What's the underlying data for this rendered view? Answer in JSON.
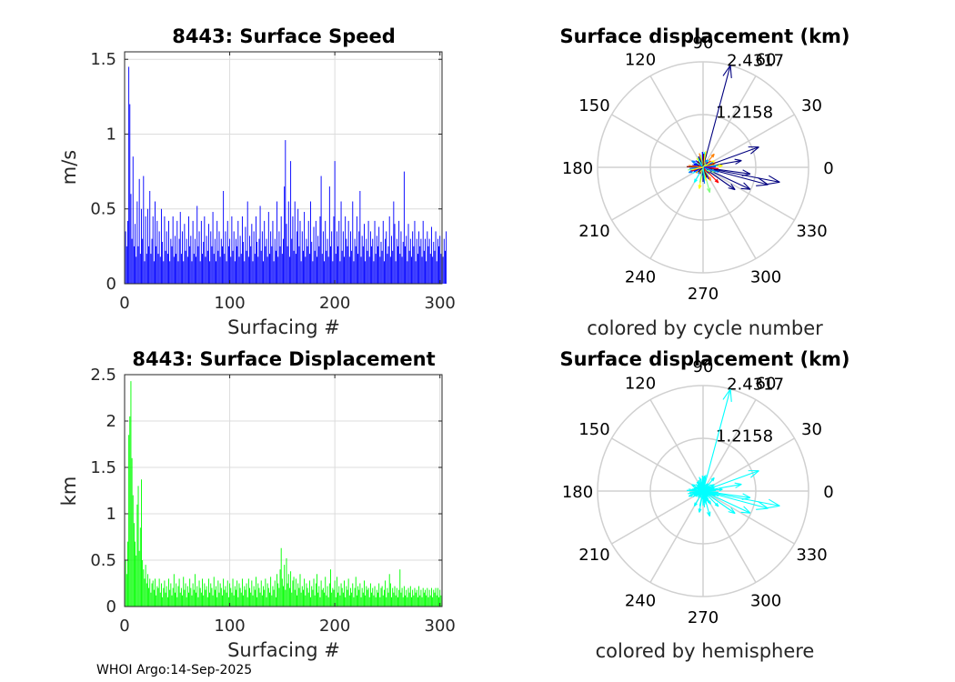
{
  "footer": {
    "credit": "WHOI Argo:14-Sep-2025"
  },
  "chart_data": [
    {
      "id": "speed",
      "type": "bar",
      "title": "8443: Surface Speed",
      "xlabel": "Surfacing #",
      "ylabel": "m/s",
      "xlim": [
        0,
        302
      ],
      "ylim": [
        0,
        1.55
      ],
      "xticks": [
        0,
        100,
        200,
        300
      ],
      "yticks": [
        0,
        0.5,
        1,
        1.5
      ],
      "yticklabels": [
        "0",
        "0.5",
        "1",
        "1.5"
      ],
      "grid": true,
      "color": "#0000ff",
      "x_start": 1,
      "values": [
        0.35,
        0.25,
        0.42,
        1.45,
        1.2,
        0.6,
        0.3,
        0.85,
        0.25,
        0.4,
        0.18,
        0.55,
        0.25,
        0.7,
        0.2,
        0.5,
        0.3,
        0.72,
        0.15,
        0.45,
        0.2,
        0.5,
        0.25,
        0.62,
        0.2,
        0.3,
        0.45,
        0.15,
        0.55,
        0.25,
        0.42,
        0.2,
        0.35,
        0.18,
        0.5,
        0.28,
        0.15,
        0.45,
        0.22,
        0.35,
        0.2,
        0.42,
        0.15,
        0.3,
        0.25,
        0.45,
        0.18,
        0.32,
        0.2,
        0.42,
        0.15,
        0.3,
        0.48,
        0.2,
        0.35,
        0.15,
        0.4,
        0.22,
        0.3,
        0.18,
        0.45,
        0.25,
        0.32,
        0.15,
        0.42,
        0.2,
        0.3,
        0.18,
        0.52,
        0.25,
        0.35,
        0.15,
        0.42,
        0.2,
        0.28,
        0.45,
        0.18,
        0.32,
        0.22,
        0.4,
        0.15,
        0.35,
        0.25,
        0.48,
        0.2,
        0.3,
        0.15,
        0.42,
        0.22,
        0.35,
        0.18,
        0.3,
        0.25,
        0.62,
        0.2,
        0.35,
        0.15,
        0.42,
        0.25,
        0.3,
        0.18,
        0.45,
        0.22,
        0.35,
        0.15,
        0.3,
        0.25,
        0.42,
        0.18,
        0.32,
        0.2,
        0.45,
        0.28,
        0.15,
        0.38,
        0.22,
        0.55,
        0.18,
        0.32,
        0.25,
        0.4,
        0.15,
        0.35,
        0.2,
        0.45,
        0.28,
        0.18,
        0.3,
        0.52,
        0.22,
        0.35,
        0.15,
        0.42,
        0.25,
        0.3,
        0.18,
        0.48,
        0.2,
        0.35,
        0.25,
        0.42,
        0.15,
        0.3,
        0.22,
        0.55,
        0.18,
        0.35,
        0.25,
        0.45,
        0.2,
        0.3,
        0.65,
        0.96,
        0.4,
        0.25,
        0.55,
        0.18,
        0.82,
        0.3,
        0.45,
        0.22,
        0.55,
        0.2,
        0.35,
        0.5,
        0.25,
        0.42,
        0.15,
        0.35,
        0.22,
        0.48,
        0.18,
        0.3,
        0.25,
        0.42,
        0.2,
        0.55,
        0.28,
        0.15,
        0.38,
        0.22,
        0.42,
        0.18,
        0.32,
        0.25,
        0.45,
        0.72,
        0.2,
        0.35,
        0.15,
        0.42,
        0.22,
        0.3,
        0.18,
        0.65,
        0.25,
        0.35,
        0.15,
        0.45,
        0.82,
        0.2,
        0.35,
        0.25,
        0.42,
        0.15,
        0.55,
        0.22,
        0.35,
        0.18,
        0.45,
        0.3,
        0.25,
        0.42,
        0.18,
        0.35,
        0.22,
        0.55,
        0.15,
        0.3,
        0.25,
        0.45,
        0.2,
        0.35,
        0.62,
        0.18,
        0.32,
        0.25,
        0.4,
        0.15,
        0.3,
        0.22,
        0.42,
        0.18,
        0.35,
        0.25,
        0.3,
        0.15,
        0.42,
        0.2,
        0.32,
        0.25,
        0.38,
        0.18,
        0.28,
        0.22,
        0.42,
        0.15,
        0.3,
        0.35,
        0.2,
        0.25,
        0.45,
        0.18,
        0.32,
        0.22,
        0.55,
        0.4,
        0.15,
        0.3,
        0.25,
        0.42,
        0.2,
        0.35,
        0.18,
        0.28,
        0.75,
        0.25,
        0.32,
        0.15,
        0.4,
        0.22,
        0.3,
        0.18,
        0.35,
        0.25,
        0.42,
        0.15,
        0.3,
        0.2,
        0.35,
        0.25,
        0.3,
        0.18,
        0.42,
        0.22,
        0.3,
        0.15,
        0.35,
        0.25,
        0.3,
        0.2,
        0.38,
        0.18,
        0.28,
        0.22,
        0.35,
        0.15,
        0.3,
        0.25,
        0.32,
        0.2,
        0.35,
        0.18,
        0.3,
        0.22,
        0.35
      ]
    },
    {
      "id": "displacement",
      "type": "bar",
      "title": "8443: Surface Displacement",
      "xlabel": "Surfacing #",
      "ylabel": "km",
      "xlim": [
        0,
        302
      ],
      "ylim": [
        0,
        2.5
      ],
      "xticks": [
        0,
        100,
        200,
        300
      ],
      "yticks": [
        0,
        0.5,
        1,
        1.5,
        2,
        2.5
      ],
      "yticklabels": [
        "0",
        "0.5",
        "1",
        "1.5",
        "2",
        "2.5"
      ],
      "grid": true,
      "color": "#00ff00",
      "x_start": 1,
      "values": [
        0.5,
        0.35,
        0.7,
        1.85,
        2.05,
        2.43,
        1.6,
        1.2,
        0.9,
        0.7,
        0.55,
        1.1,
        1.3,
        0.6,
        0.85,
        1.37,
        0.5,
        0.4,
        0.3,
        0.45,
        0.25,
        0.35,
        0.2,
        0.3,
        0.15,
        0.25,
        0.28,
        0.18,
        0.3,
        0.12,
        0.22,
        0.2,
        0.3,
        0.15,
        0.25,
        0.1,
        0.2,
        0.28,
        0.15,
        0.22,
        0.1,
        0.3,
        0.18,
        0.25,
        0.12,
        0.2,
        0.35,
        0.15,
        0.25,
        0.1,
        0.22,
        0.3,
        0.15,
        0.2,
        0.12,
        0.32,
        0.18,
        0.25,
        0.1,
        0.22,
        0.15,
        0.3,
        0.2,
        0.12,
        0.25,
        0.18,
        0.35,
        0.15,
        0.22,
        0.1,
        0.28,
        0.2,
        0.15,
        0.3,
        0.12,
        0.25,
        0.18,
        0.22,
        0.1,
        0.3,
        0.15,
        0.25,
        0.2,
        0.12,
        0.32,
        0.18,
        0.22,
        0.1,
        0.28,
        0.15,
        0.25,
        0.2,
        0.12,
        0.3,
        0.18,
        0.22,
        0.15,
        0.28,
        0.1,
        0.25,
        0.2,
        0.15,
        0.3,
        0.12,
        0.22,
        0.18,
        0.28,
        0.1,
        0.25,
        0.2,
        0.15,
        0.3,
        0.12,
        0.22,
        0.18,
        0.25,
        0.1,
        0.3,
        0.2,
        0.15,
        0.28,
        0.12,
        0.22,
        0.18,
        0.32,
        0.1,
        0.25,
        0.2,
        0.15,
        0.28,
        0.12,
        0.22,
        0.18,
        0.3,
        0.1,
        0.25,
        0.2,
        0.15,
        0.32,
        0.12,
        0.22,
        0.18,
        0.28,
        0.1,
        0.35,
        0.25,
        0.2,
        0.4,
        0.63,
        0.3,
        0.22,
        0.45,
        0.18,
        0.52,
        0.25,
        0.35,
        0.2,
        0.38,
        0.15,
        0.28,
        0.32,
        0.18,
        0.3,
        0.12,
        0.25,
        0.2,
        0.35,
        0.15,
        0.22,
        0.18,
        0.3,
        0.12,
        0.25,
        0.2,
        0.15,
        0.28,
        0.1,
        0.22,
        0.18,
        0.3,
        0.12,
        0.25,
        0.35,
        0.15,
        0.22,
        0.1,
        0.28,
        0.18,
        0.2,
        0.15,
        0.32,
        0.12,
        0.22,
        0.1,
        0.25,
        0.4,
        0.15,
        0.2,
        0.18,
        0.28,
        0.1,
        0.32,
        0.15,
        0.22,
        0.12,
        0.25,
        0.2,
        0.15,
        0.28,
        0.1,
        0.22,
        0.18,
        0.3,
        0.12,
        0.2,
        0.15,
        0.25,
        0.1,
        0.2,
        0.32,
        0.12,
        0.22,
        0.18,
        0.25,
        0.1,
        0.2,
        0.15,
        0.28,
        0.12,
        0.22,
        0.18,
        0.2,
        0.1,
        0.25,
        0.15,
        0.2,
        0.12,
        0.22,
        0.1,
        0.18,
        0.15,
        0.25,
        0.1,
        0.2,
        0.22,
        0.12,
        0.18,
        0.28,
        0.1,
        0.2,
        0.15,
        0.35,
        0.25,
        0.1,
        0.2,
        0.15,
        0.22,
        0.12,
        0.2,
        0.1,
        0.18,
        0.4,
        0.15,
        0.2,
        0.1,
        0.22,
        0.12,
        0.18,
        0.1,
        0.2,
        0.15,
        0.22,
        0.1,
        0.18,
        0.12,
        0.2,
        0.15,
        0.18,
        0.1,
        0.22,
        0.12,
        0.18,
        0.1,
        0.2,
        0.15,
        0.18,
        0.12,
        0.2,
        0.1,
        0.18,
        0.12,
        0.2,
        0.1,
        0.18,
        0.15,
        0.2,
        0.12,
        0.2,
        0.1,
        0.18,
        0.12,
        0.2
      ]
    },
    {
      "id": "polar-cycle",
      "type": "polar-vector",
      "title": "Surface displacement (km)",
      "xlabel": "colored by cycle number",
      "rmax": 2.4317,
      "rtick_labels": [
        "1.2158",
        "2.4317"
      ],
      "angle_labels": [
        "0",
        "30",
        "60",
        "90",
        "120",
        "150",
        "180",
        "210",
        "240",
        "270",
        "300",
        "330"
      ],
      "color_mode": "cycle",
      "palette": [
        "#00007f",
        "#0000ff",
        "#007fff",
        "#00ffff",
        "#7fff7f",
        "#ffff00",
        "#ff7f00",
        "#ff0000",
        "#7f0000"
      ],
      "vectors": [
        {
          "angle_deg": 75,
          "r_km": 2.4317,
          "cycle_frac": 0.02
        },
        {
          "angle_deg": 20,
          "r_km": 1.37,
          "cycle_frac": 0.03
        },
        {
          "angle_deg": -11,
          "r_km": 1.8,
          "cycle_frac": 0.01
        },
        {
          "angle_deg": -15,
          "r_km": 1.55,
          "cycle_frac": 0.02
        },
        {
          "angle_deg": -25,
          "r_km": 1.2,
          "cycle_frac": 0.03
        },
        {
          "angle_deg": -8,
          "r_km": 1.1,
          "cycle_frac": 0.01
        },
        {
          "angle_deg": 10,
          "r_km": 0.9,
          "cycle_frac": 0.04
        },
        {
          "angle_deg": -35,
          "r_km": 0.9,
          "cycle_frac": 0.05
        },
        {
          "angle_deg": -75,
          "r_km": 0.6,
          "cycle_frac": 0.5
        },
        {
          "angle_deg": -100,
          "r_km": 0.5,
          "cycle_frac": 0.6
        },
        {
          "angle_deg": 50,
          "r_km": 0.4,
          "cycle_frac": 0.7
        },
        {
          "angle_deg": 85,
          "r_km": 0.35,
          "cycle_frac": 0.4
        },
        {
          "angle_deg": 150,
          "r_km": 0.3,
          "cycle_frac": 0.3
        },
        {
          "angle_deg": 200,
          "r_km": 0.35,
          "cycle_frac": 0.2
        },
        {
          "angle_deg": 240,
          "r_km": 0.4,
          "cycle_frac": 0.35
        },
        {
          "angle_deg": 170,
          "r_km": 0.25,
          "cycle_frac": 0.15
        },
        {
          "angle_deg": 120,
          "r_km": 0.25,
          "cycle_frac": 0.55
        },
        {
          "angle_deg": 30,
          "r_km": 0.3,
          "cycle_frac": 0.65
        },
        {
          "angle_deg": -20,
          "r_km": 0.3,
          "cycle_frac": 0.45
        },
        {
          "angle_deg": -60,
          "r_km": 0.35,
          "cycle_frac": 0.75
        },
        {
          "angle_deg": 260,
          "r_km": 0.2,
          "cycle_frac": 0.25
        },
        {
          "angle_deg": 190,
          "r_km": 0.2,
          "cycle_frac": 0.1
        },
        {
          "angle_deg": 100,
          "r_km": 0.2,
          "cycle_frac": 0.8
        },
        {
          "angle_deg": 5,
          "r_km": 0.45,
          "cycle_frac": 0.6
        },
        {
          "angle_deg": -45,
          "r_km": 0.5,
          "cycle_frac": 0.9
        },
        {
          "angle_deg": 220,
          "r_km": 0.15,
          "cycle_frac": 0.15
        },
        {
          "angle_deg": 135,
          "r_km": 0.18,
          "cycle_frac": 0.05
        },
        {
          "angle_deg": 60,
          "r_km": 0.2,
          "cycle_frac": 0.3
        },
        {
          "angle_deg": -30,
          "r_km": 0.2,
          "cycle_frac": 0.2
        },
        {
          "angle_deg": 160,
          "r_km": 0.22,
          "cycle_frac": 0.1
        }
      ]
    },
    {
      "id": "polar-hemisphere",
      "type": "polar-vector",
      "title": "Surface displacement (km)",
      "xlabel": "colored by hemisphere",
      "rmax": 2.4317,
      "rtick_labels": [
        "1.2158",
        "2.4317"
      ],
      "angle_labels": [
        "0",
        "30",
        "60",
        "90",
        "120",
        "150",
        "180",
        "210",
        "240",
        "270",
        "300",
        "330"
      ],
      "color_mode": "single",
      "color": "#00ffff",
      "vectors_from": "polar-cycle"
    }
  ]
}
